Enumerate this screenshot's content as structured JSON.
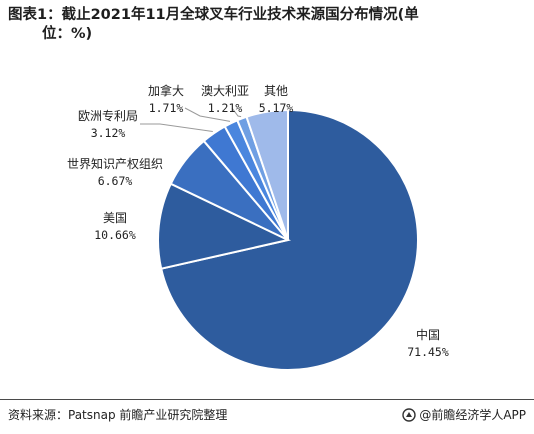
{
  "title_line1": "图表1：截止2021年11月全球叉车行业技术来源国分布情况(单",
  "title_line2": "位：%)",
  "source": "资料来源：Patsnap 前瞻产业研究院整理",
  "brand": "@前瞻经济学人APP",
  "chart_data": {
    "type": "pie",
    "categories": [
      "中国",
      "美国",
      "世界知识产权组织",
      "欧洲专利局",
      "加拿大",
      "澳大利亚",
      "其他"
    ],
    "values": [
      71.45,
      10.66,
      6.67,
      3.12,
      1.71,
      1.21,
      5.17
    ],
    "value_labels": [
      "71.45%",
      "10.66%",
      "6.67%",
      "3.12%",
      "1.71%",
      "1.21%",
      "5.17%"
    ],
    "colors": [
      "#2e5c9e",
      "#2e5c9e",
      "#3a6fc0",
      "#3f78d2",
      "#4a86de",
      "#6f9fe3",
      "#9fbaea"
    ],
    "start": "12 o'clock",
    "direction": "clockwise",
    "labels": "outside with leader lines"
  }
}
